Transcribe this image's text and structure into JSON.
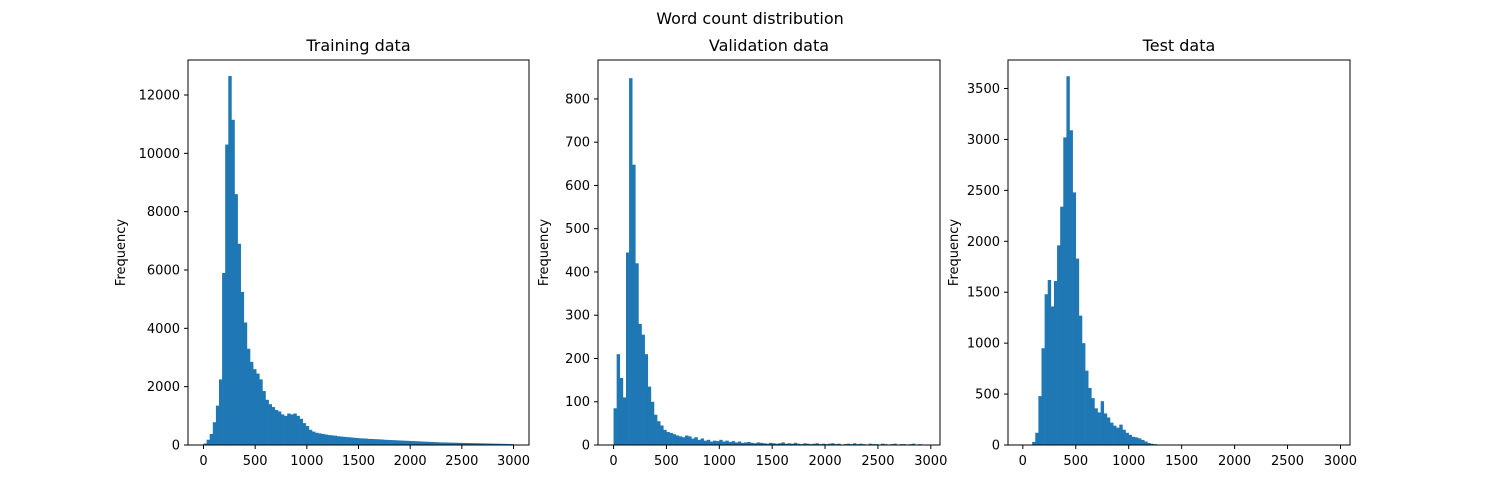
{
  "figure": {
    "title": "Word count distribution"
  },
  "colors": {
    "bar": "#1f77b4",
    "axis": "#000000",
    "background": "#ffffff"
  },
  "chart_data": [
    {
      "type": "bar",
      "title": "Training data",
      "xlabel": "",
      "ylabel": "Frequency",
      "xlim": [
        -150,
        3150
      ],
      "ylim": [
        0,
        13200
      ],
      "xticks": [
        0,
        500,
        1000,
        1500,
        2000,
        2500,
        3000
      ],
      "yticks": [
        0,
        2000,
        4000,
        6000,
        8000,
        10000,
        12000
      ],
      "bin_start": 0,
      "bin_width": 30,
      "values": [
        50,
        180,
        380,
        780,
        1350,
        2250,
        5900,
        10300,
        12650,
        11150,
        8600,
        6900,
        5250,
        4200,
        3300,
        2850,
        2600,
        2450,
        2250,
        1850,
        1550,
        1400,
        1300,
        1200,
        1150,
        1050,
        1000,
        1080,
        1050,
        1080,
        1000,
        900,
        750,
        650,
        520,
        460,
        420,
        400,
        380,
        360,
        340,
        330,
        320,
        300,
        290,
        280,
        270,
        260,
        250,
        240,
        230,
        225,
        220,
        210,
        205,
        200,
        195,
        190,
        180,
        175,
        170,
        165,
        160,
        155,
        150,
        145,
        140,
        135,
        130,
        125,
        120,
        115,
        110,
        105,
        100,
        95,
        90,
        88,
        85,
        82,
        80,
        78,
        75,
        72,
        70,
        68,
        65,
        62,
        60,
        58,
        55,
        52,
        50,
        48,
        45,
        42,
        40,
        38,
        35,
        32
      ]
    },
    {
      "type": "bar",
      "title": "Validation data",
      "xlabel": "",
      "ylabel": "Frequency",
      "xlim": [
        -147,
        3087
      ],
      "ylim": [
        0,
        890
      ],
      "xticks": [
        0,
        500,
        1000,
        1500,
        2000,
        2500,
        3000
      ],
      "yticks": [
        0,
        100,
        200,
        300,
        400,
        500,
        600,
        700,
        800
      ],
      "bin_start": 0,
      "bin_width": 29.4,
      "values": [
        85,
        210,
        155,
        110,
        445,
        848,
        648,
        420,
        280,
        255,
        210,
        135,
        100,
        70,
        55,
        45,
        35,
        30,
        28,
        25,
        22,
        20,
        18,
        22,
        20,
        15,
        18,
        12,
        15,
        10,
        12,
        8,
        10,
        9,
        12,
        8,
        10,
        7,
        9,
        6,
        8,
        5,
        6,
        7,
        5,
        4,
        6,
        5,
        4,
        3,
        5,
        4,
        3,
        4,
        6,
        3,
        4,
        3,
        5,
        3,
        2,
        4,
        3,
        2,
        3,
        4,
        2,
        3,
        2,
        3,
        4,
        2,
        3,
        1,
        2,
        3,
        2,
        4,
        2,
        3,
        2,
        1,
        3,
        2,
        2,
        1,
        3,
        2,
        1,
        2,
        3,
        1,
        2,
        2,
        1,
        2,
        3,
        1,
        2,
        1
      ]
    },
    {
      "type": "bar",
      "title": "Test data",
      "xlabel": "",
      "ylabel": "Frequency",
      "xlim": [
        -140,
        3090
      ],
      "ylim": [
        0,
        3780
      ],
      "xticks": [
        0,
        500,
        1000,
        1500,
        2000,
        2500,
        3000
      ],
      "yticks": [
        0,
        500,
        1000,
        1500,
        2000,
        2500,
        3000,
        3500
      ],
      "bin_start": 0,
      "bin_width": 29.4,
      "values": [
        0,
        0,
        5,
        30,
        120,
        480,
        950,
        1480,
        1620,
        1360,
        1610,
        1960,
        2340,
        3020,
        3620,
        3090,
        2480,
        1830,
        1270,
        1000,
        730,
        560,
        460,
        360,
        320,
        430,
        310,
        270,
        220,
        190,
        170,
        200,
        150,
        120,
        100,
        80,
        75,
        65,
        50,
        35,
        20,
        12,
        8,
        5,
        4,
        3,
        2,
        2,
        1,
        1,
        1,
        1,
        0,
        0,
        1,
        0,
        0,
        0,
        0,
        0,
        0,
        0,
        0,
        0,
        0,
        0,
        0,
        0,
        0,
        0,
        0,
        0,
        0,
        0,
        0,
        0,
        0,
        0,
        0,
        0,
        0,
        0,
        0,
        0,
        0,
        0,
        0,
        0,
        0,
        0,
        0,
        0,
        0,
        0,
        0,
        0,
        0,
        0,
        0,
        0
      ]
    }
  ]
}
